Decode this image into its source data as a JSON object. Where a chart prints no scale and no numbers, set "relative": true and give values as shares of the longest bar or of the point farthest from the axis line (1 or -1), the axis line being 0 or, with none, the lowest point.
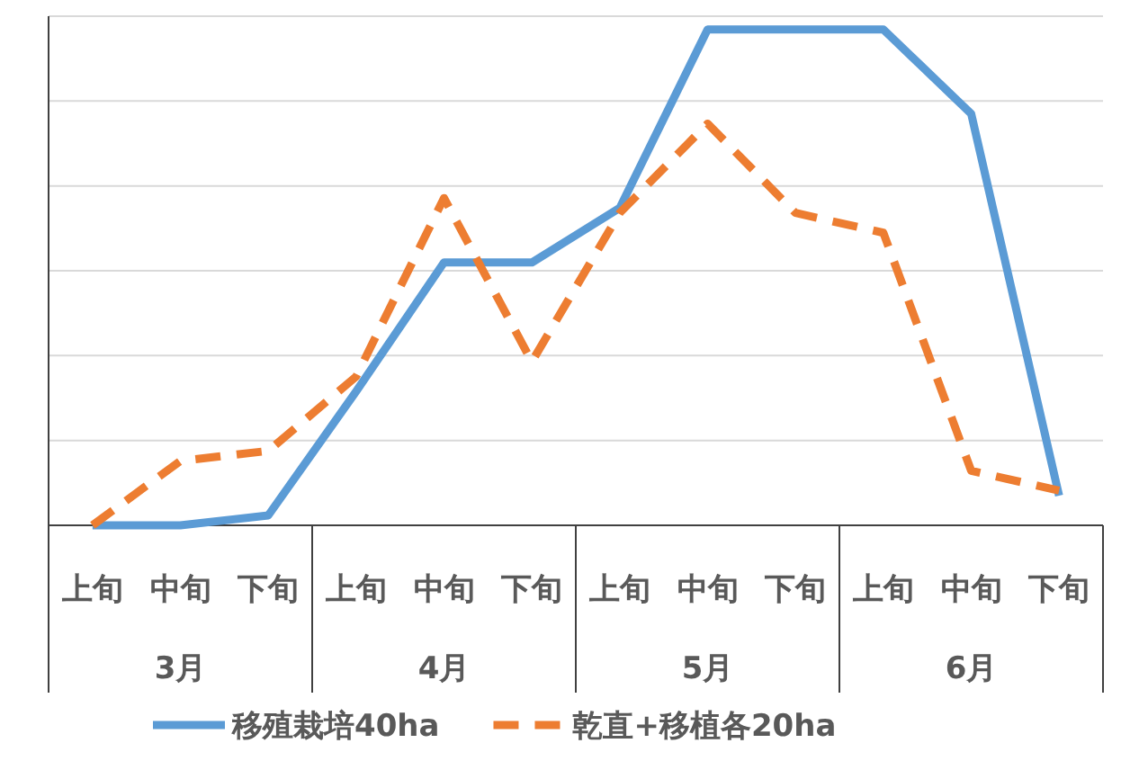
{
  "chart_data": {
    "type": "line",
    "relative": true,
    "categories": [
      "上旬",
      "中旬",
      "下旬",
      "上旬",
      "中旬",
      "下旬",
      "上旬",
      "中旬",
      "下旬",
      "上旬",
      "中旬",
      "下旬"
    ],
    "annotations": [
      "3月",
      "4月",
      "5月",
      "6月"
    ],
    "series": [
      {
        "name": "移殖栽培40ha",
        "color": "#5b9bd5",
        "line_style": "solid",
        "values": [
          0,
          0,
          0.02,
          0.27,
          0.53,
          0.53,
          0.64,
          1,
          1,
          1,
          0.83,
          0.06
        ]
      },
      {
        "name": "乾直+移植各20ha",
        "color": "#ed7d31",
        "line_style": "dashed",
        "values": [
          0,
          0.13,
          0.15,
          0.3,
          0.66,
          0.33,
          0.63,
          0.81,
          0.63,
          0.59,
          0.11,
          0.07
        ]
      }
    ],
    "grid": "y",
    "legend": "bottom",
    "marker": "none"
  }
}
